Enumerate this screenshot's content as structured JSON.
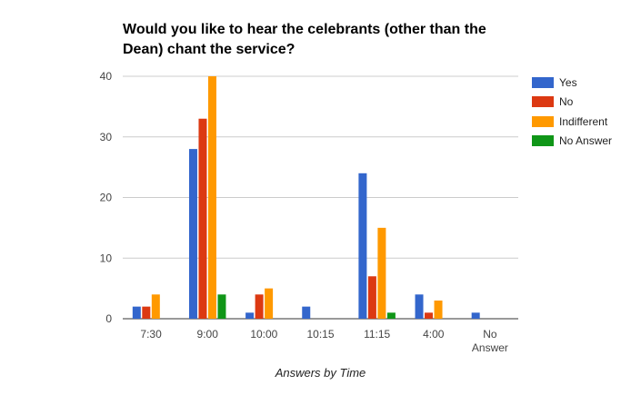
{
  "chart_data": {
    "type": "bar",
    "title": "Would you like to hear the celebrants (other than the Dean) chant the service?",
    "xlabel": "Answers by Time",
    "ylabel": "",
    "ylim": [
      0,
      40
    ],
    "yticks": [
      0,
      10,
      20,
      30,
      40
    ],
    "grid": true,
    "legend_position": "right",
    "categories": [
      "7:30",
      "9:00",
      "10:00",
      "10:15",
      "11:15",
      "4:00",
      "No Answer"
    ],
    "series": [
      {
        "name": "Yes",
        "color": "#3366cc",
        "values": [
          2,
          28,
          1,
          2,
          24,
          4,
          1
        ]
      },
      {
        "name": "No",
        "color": "#dc3912",
        "values": [
          2,
          33,
          4,
          0,
          7,
          1,
          0
        ]
      },
      {
        "name": "Indifferent",
        "color": "#ff9900",
        "values": [
          4,
          40,
          5,
          0,
          15,
          3,
          0
        ]
      },
      {
        "name": "No Answer",
        "color": "#109618",
        "values": [
          0,
          4,
          0,
          0,
          1,
          0,
          0
        ]
      }
    ]
  }
}
